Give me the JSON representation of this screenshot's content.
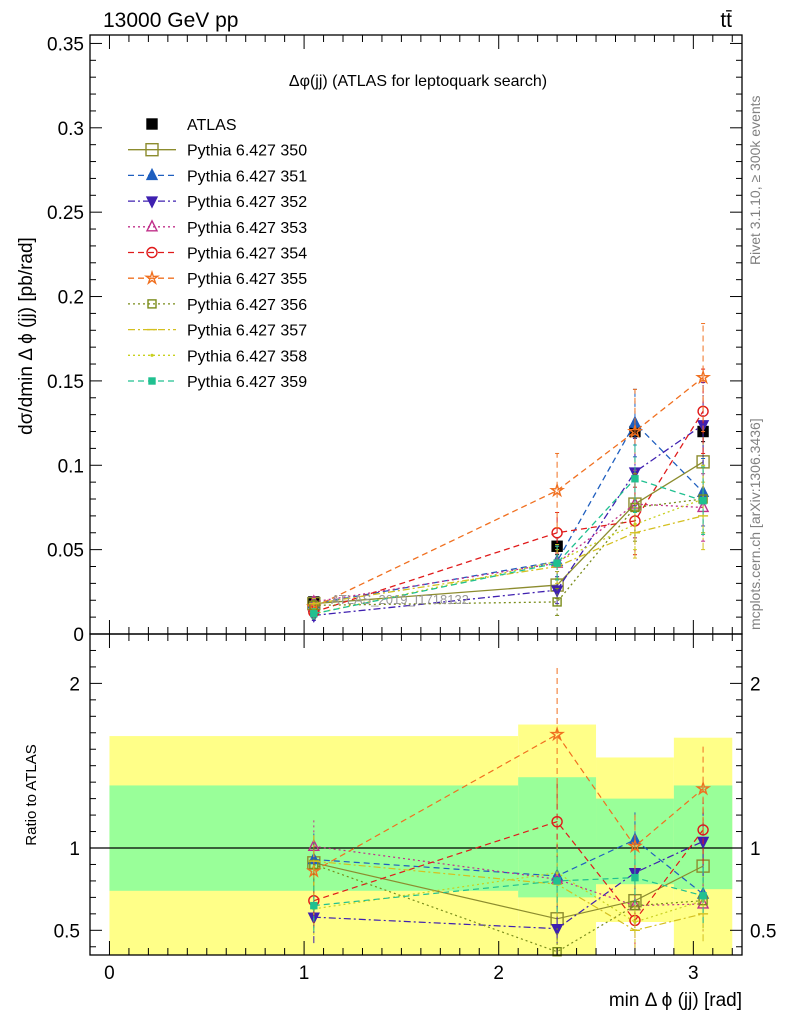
{
  "header": {
    "energy_label": "13000 GeV pp",
    "process_label": "tt̄"
  },
  "side": {
    "rivet_label": "Rivet 3.1.10, ≥ 300k events",
    "mcplots_label": "mcplots.cern.ch [arXiv:1306.3436]",
    "watermark": "ATLAS_2019_I1718132"
  },
  "chart_data": [
    {
      "type": "scatter",
      "title": "Δφ(jj) (ATLAS for leptoquark search)",
      "xlabel": "min Δ ϕ (jj) [rad]",
      "ylabel": "dσ/dmin Δ ϕ (jj) [pb/rad]",
      "xlim": [
        -0.1,
        3.25
      ],
      "ylim": [
        0,
        0.355
      ],
      "x_ticks": [
        0,
        1,
        2,
        3
      ],
      "y_ticks": [
        0,
        0.05,
        0.1,
        0.15,
        0.2,
        0.25,
        0.3,
        0.35
      ],
      "y_tick_labels": [
        "0",
        "0.05",
        "0.1",
        "0.15",
        "0.2",
        "0.25",
        "0.3",
        "0.35"
      ],
      "grid": false,
      "legend_position": "top-left",
      "x": [
        1.05,
        2.3,
        2.7,
        3.05
      ],
      "series": [
        {
          "name": "ATLAS",
          "color": "#000000",
          "marker": "square-filled",
          "line": "none",
          "values": [
            0.019,
            0.052,
            0.12,
            0.12
          ],
          "errors": [
            0.002,
            0.005,
            0.004,
            0.006
          ]
        },
        {
          "name": "Pythia 6.427 350",
          "color": "#8c8c2e",
          "marker": "square-open",
          "line": "solid",
          "values": [
            0.018,
            0.029,
            0.077,
            0.102
          ],
          "errors": [
            0.003,
            0.008,
            0.02,
            0.02
          ]
        },
        {
          "name": "Pythia 6.427 351",
          "color": "#1f5fbf",
          "marker": "triangle-up-filled",
          "line": "dashed",
          "values": [
            0.018,
            0.043,
            0.125,
            0.084
          ],
          "errors": [
            0.003,
            0.01,
            0.02,
            0.02
          ]
        },
        {
          "name": "Pythia 6.427 352",
          "color": "#3f20b0",
          "marker": "triangle-down-filled",
          "line": "dashdot",
          "values": [
            0.011,
            0.026,
            0.096,
            0.124
          ],
          "errors": [
            0.003,
            0.008,
            0.02,
            0.025
          ]
        },
        {
          "name": "Pythia 6.427 353",
          "color": "#c0308a",
          "marker": "triangle-up-open",
          "line": "dotted",
          "values": [
            0.019,
            0.042,
            0.077,
            0.075
          ],
          "errors": [
            0.003,
            0.01,
            0.02,
            0.02
          ]
        },
        {
          "name": "Pythia 6.427 354",
          "color": "#e01a1a",
          "marker": "circle-open",
          "line": "dashed",
          "values": [
            0.013,
            0.06,
            0.067,
            0.132
          ],
          "errors": [
            0.003,
            0.012,
            0.02,
            0.025
          ]
        },
        {
          "name": "Pythia 6.427 355",
          "color": "#f07020",
          "marker": "star-open",
          "line": "dashed",
          "values": [
            0.016,
            0.085,
            0.12,
            0.152
          ],
          "errors": [
            0.003,
            0.022,
            0.025,
            0.032
          ]
        },
        {
          "name": "Pythia 6.427 356",
          "color": "#7a8c1a",
          "marker": "square-open-small",
          "line": "dotted",
          "values": [
            0.017,
            0.019,
            0.075,
            0.08
          ],
          "errors": [
            0.003,
            0.008,
            0.02,
            0.02
          ]
        },
        {
          "name": "Pythia 6.427 357",
          "color": "#d4c020",
          "marker": "dash",
          "line": "dashdot",
          "values": [
            0.018,
            0.04,
            0.06,
            0.07
          ],
          "errors": [
            0.003,
            0.01,
            0.015,
            0.02
          ]
        },
        {
          "name": "Pythia 6.427 358",
          "color": "#c8d020",
          "marker": "dot",
          "line": "dotted",
          "values": [
            0.012,
            0.043,
            0.065,
            0.08
          ],
          "errors": [
            0.003,
            0.01,
            0.015,
            0.02
          ]
        },
        {
          "name": "Pythia 6.427 359",
          "color": "#20c090",
          "marker": "square-filled-small",
          "line": "dashed",
          "values": [
            0.012,
            0.042,
            0.092,
            0.079
          ],
          "errors": [
            0.003,
            0.01,
            0.02,
            0.02
          ]
        }
      ]
    },
    {
      "type": "scatter",
      "title": "",
      "ylabel": "Ratio to ATLAS",
      "xlabel": "min Δ ϕ (jj) [rad]",
      "xlim": [
        -0.1,
        3.25
      ],
      "ylim": [
        0.35,
        2.3
      ],
      "y_ticks": [
        0.5,
        1,
        2
      ],
      "y_tick_labels": [
        "0.5",
        "1",
        "2"
      ],
      "reference_line": 1,
      "bands": {
        "bin_edges": [
          0,
          2.1,
          2.5,
          2.9,
          3.2
        ],
        "inner_color": "#99ff99",
        "outer_color": "#ffff88",
        "inner_low": [
          0.74,
          0.7,
          0.78,
          0.75
        ],
        "inner_high": [
          1.38,
          1.43,
          1.3,
          1.38
        ],
        "outer_low": [
          0.35,
          0.35,
          0.55,
          0.35
        ],
        "outer_high": [
          1.68,
          1.75,
          1.55,
          1.67
        ],
        "outer_gaps": [
          [
            2.5,
            2.9,
            0.35,
            0.55
          ]
        ]
      },
      "x": [
        1.05,
        2.3,
        2.7,
        3.05
      ],
      "series": [
        {
          "name": "Pythia 6.427 350",
          "values": [
            0.91,
            0.57,
            0.68,
            0.89
          ]
        },
        {
          "name": "Pythia 6.427 351",
          "values": [
            0.93,
            0.83,
            1.05,
            0.72
          ]
        },
        {
          "name": "Pythia 6.427 352",
          "values": [
            0.58,
            0.51,
            0.85,
            1.04
          ]
        },
        {
          "name": "Pythia 6.427 353",
          "values": [
            1.01,
            0.81,
            0.65,
            0.66
          ]
        },
        {
          "name": "Pythia 6.427 354",
          "values": [
            0.68,
            1.16,
            0.56,
            1.11
          ]
        },
        {
          "name": "Pythia 6.427 355",
          "values": [
            0.86,
            1.69,
            1.01,
            1.36
          ]
        },
        {
          "name": "Pythia 6.427 356",
          "values": [
            0.9,
            0.37,
            0.65,
            0.68
          ]
        },
        {
          "name": "Pythia 6.427 357",
          "values": [
            0.92,
            0.78,
            0.5,
            0.6
          ]
        },
        {
          "name": "Pythia 6.427 358",
          "values": [
            0.63,
            0.85,
            0.55,
            0.68
          ]
        },
        {
          "name": "Pythia 6.427 359",
          "values": [
            0.65,
            0.8,
            0.82,
            0.71
          ]
        }
      ]
    }
  ]
}
